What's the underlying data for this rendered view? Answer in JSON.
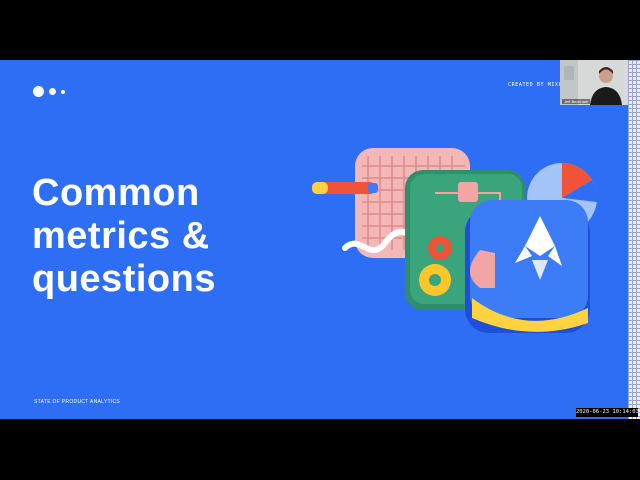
{
  "slide": {
    "title_lines": [
      "Common",
      "metrics &",
      "questions"
    ],
    "created_by": "CREATED BY MIXPANEL",
    "footer": "STATE OF PRODUCT ANALYTICS"
  },
  "webcam": {
    "name": "Jeff Beckham"
  },
  "recording": {
    "timestamp": "2020-06-23 10:14:03"
  },
  "colors": {
    "slide_bg": "#2e6ef5",
    "frame_bg": "#000000"
  }
}
